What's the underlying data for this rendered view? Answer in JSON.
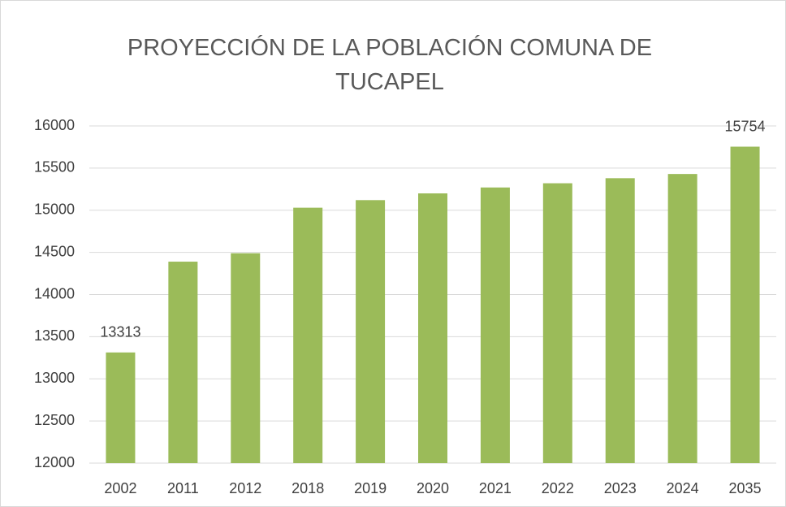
{
  "chart_data": {
    "type": "bar",
    "title": "PROYECCIÓN DE LA POBLACIÓN COMUNA DE TUCAPEL",
    "categories": [
      "2002",
      "2011",
      "2012",
      "2018",
      "2019",
      "2020",
      "2021",
      "2022",
      "2023",
      "2024",
      "2035"
    ],
    "values": [
      13313,
      14390,
      14490,
      15030,
      15120,
      15200,
      15270,
      15320,
      15380,
      15430,
      15754
    ],
    "value_labels": [
      "13313",
      null,
      null,
      null,
      null,
      null,
      null,
      null,
      null,
      null,
      "15754"
    ],
    "color": "#9bbb59",
    "ylim": [
      12000,
      16000
    ],
    "yticks": [
      12000,
      12500,
      13000,
      13500,
      14000,
      14500,
      15000,
      15500,
      16000
    ],
    "grid": true
  }
}
